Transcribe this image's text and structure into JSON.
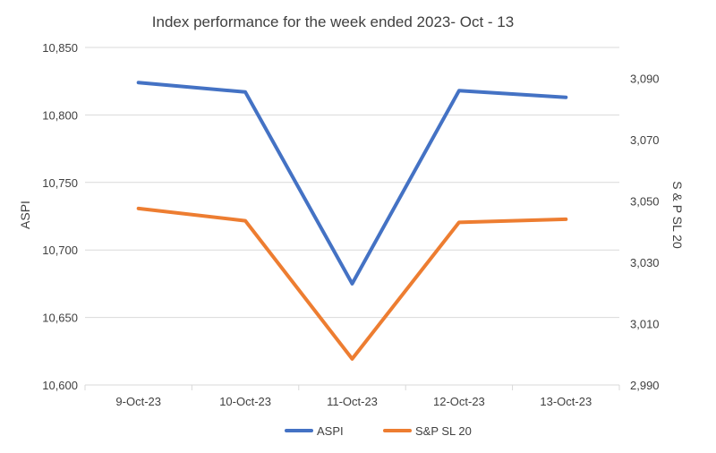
{
  "chart_data": {
    "type": "line",
    "title": "Index performance for the week ended 2023- Oct - 13",
    "categories": [
      "9-Oct-23",
      "10-Oct-23",
      "11-Oct-23",
      "12-Oct-23",
      "13-Oct-23"
    ],
    "series": [
      {
        "name": "ASPI",
        "axis": "left",
        "color": "#4472C4",
        "values": [
          10824,
          10817,
          10675,
          10818,
          10813
        ]
      },
      {
        "name": "S&P SL 20",
        "axis": "right",
        "color": "#ED7D31",
        "values": [
          3047.5,
          3043.5,
          2998.5,
          3043,
          3044
        ]
      }
    ],
    "ylabel": "ASPI",
    "y2label": "S & P SL 20",
    "ylim": [
      10600,
      10850
    ],
    "yticks": [
      "10,600",
      "10,650",
      "10,700",
      "10,750",
      "10,800",
      "10,850"
    ],
    "y2lim": [
      2990,
      3100
    ],
    "y2ticks": [
      "2,990",
      "3,010",
      "3,030",
      "3,050",
      "3,070",
      "3,090"
    ],
    "grid": true,
    "legend": "bottom"
  }
}
